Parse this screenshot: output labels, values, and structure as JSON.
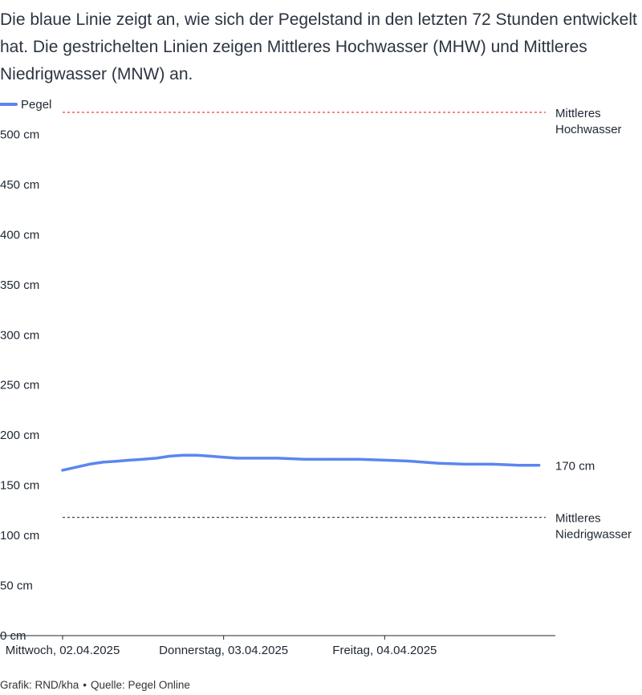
{
  "intro_text": "Die blaue Linie zeigt an, wie sich der Pegelstand in den letzten 72 Stunden entwickelt hat. Die gestrichelten Linien zeigen Mittleres Hochwasser (MHW) und Mittleres Niedrigwasser (MNW) an.",
  "chart_data": {
    "type": "line",
    "legend": {
      "label": "Pegel",
      "placement": "top-left"
    },
    "y_unit": "cm",
    "ylim": [
      0,
      530
    ],
    "y_ticks": [
      0,
      50,
      100,
      150,
      200,
      250,
      300,
      350,
      400,
      450,
      500
    ],
    "y_tick_labels": [
      "0 cm",
      "50 cm",
      "100 cm",
      "150 cm",
      "200 cm",
      "250 cm",
      "300 cm",
      "350 cm",
      "400 cm",
      "450 cm",
      "500 cm"
    ],
    "xlim": [
      "2025-04-02T00:00",
      "2025-04-05T00:00"
    ],
    "x_ticks": [
      "2025-04-02T00:00",
      "2025-04-03T00:00",
      "2025-04-04T00:00"
    ],
    "x_tick_labels": [
      "Mittwoch, 02.04.2025",
      "Donnerstag, 03.04.2025",
      "Freitag, 04.04.2025"
    ],
    "grid": false,
    "series": [
      {
        "name": "Pegel",
        "color": "#5b86f0",
        "x": [
          "2025-04-02T00:00",
          "2025-04-02T02:00",
          "2025-04-02T04:00",
          "2025-04-02T06:00",
          "2025-04-02T08:00",
          "2025-04-02T10:00",
          "2025-04-02T12:00",
          "2025-04-02T14:00",
          "2025-04-02T16:00",
          "2025-04-02T18:00",
          "2025-04-02T20:00",
          "2025-04-02T22:00",
          "2025-04-03T00:00",
          "2025-04-03T02:00",
          "2025-04-03T04:00",
          "2025-04-03T08:00",
          "2025-04-03T12:00",
          "2025-04-03T16:00",
          "2025-04-03T20:00",
          "2025-04-04T00:00",
          "2025-04-04T04:00",
          "2025-04-04T08:00",
          "2025-04-04T12:00",
          "2025-04-04T16:00",
          "2025-04-04T20:00",
          "2025-04-04T23:00"
        ],
        "values": [
          165,
          168,
          171,
          173,
          174,
          175,
          176,
          177,
          179,
          180,
          180,
          179,
          178,
          177,
          177,
          177,
          176,
          176,
          176,
          175,
          174,
          172,
          171,
          171,
          170,
          170
        ]
      }
    ],
    "reference_lines": [
      {
        "label": "Mittleres Hochwasser",
        "value": 522,
        "color": "#e8413c",
        "style": "dashed"
      },
      {
        "label": "Mittleres Niedrigwasser",
        "value": 118,
        "color": "#444444",
        "style": "dashed"
      }
    ],
    "last_value_label": "170 cm"
  },
  "credit": {
    "grafik": "Grafik: RND/kha",
    "separator": "•",
    "quelle": "Quelle: Pegel Online"
  }
}
